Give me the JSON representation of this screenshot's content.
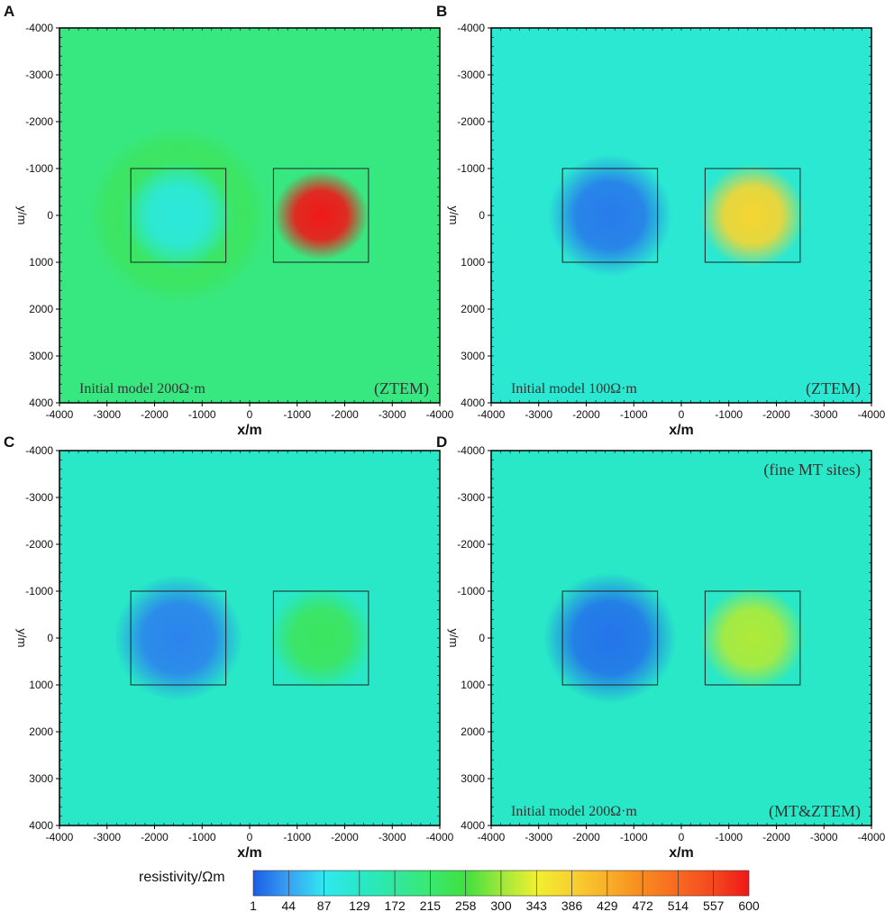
{
  "chart_data": [
    {
      "type": "heatmap",
      "panel_label": "A",
      "xlabel": "x/m",
      "ylabel": "y/m",
      "x_ticks": [
        "-4000",
        "-3000",
        "-2000",
        "-1000",
        "0",
        "-1000",
        "-2000",
        "-3000",
        "-4000"
      ],
      "y_ticks": [
        "-4000",
        "-3000",
        "-2000",
        "-1000",
        "0",
        "1000",
        "2000",
        "3000",
        "4000"
      ],
      "xlim": [
        -4000,
        4000
      ],
      "ylim": [
        -4000,
        4000
      ],
      "background_resistivity": 200,
      "annotation": "Initial model 200Ω·m",
      "method": "(ZTEM)",
      "boxes": [
        {
          "x": [
            -2500,
            -500
          ],
          "y": [
            -1000,
            1000
          ]
        },
        {
          "x": [
            500,
            2500
          ],
          "y": [
            -1000,
            1000
          ]
        }
      ],
      "anomalies": [
        {
          "x": -1500,
          "y": 0,
          "rx": 1100,
          "ry": 1100,
          "value": 110
        },
        {
          "x": 1500,
          "y": 0,
          "rx": 1000,
          "ry": 950,
          "value": 600
        },
        {
          "x": -1500,
          "y": 0,
          "rx": 1900,
          "ry": 1900,
          "value": 250
        }
      ]
    },
    {
      "type": "heatmap",
      "panel_label": "B",
      "xlabel": "x/m",
      "ylabel": "y/m",
      "x_ticks": [
        "-4000",
        "-3000",
        "-2000",
        "-1000",
        "0",
        "-1000",
        "-2000",
        "-3000",
        "-4000"
      ],
      "y_ticks": [
        "-4000",
        "-3000",
        "-2000",
        "-1000",
        "0",
        "1000",
        "2000",
        "3000",
        "4000"
      ],
      "xlim": [
        -4000,
        4000
      ],
      "ylim": [
        -4000,
        4000
      ],
      "background_resistivity": 120,
      "annotation": "Initial model 100Ω·m",
      "method": "(ZTEM)",
      "boxes": [
        {
          "x": [
            -2500,
            -500
          ],
          "y": [
            -1000,
            1000
          ]
        },
        {
          "x": [
            500,
            2500
          ],
          "y": [
            -1000,
            1000
          ]
        }
      ],
      "anomalies": [
        {
          "x": -1500,
          "y": 0,
          "rx": 1300,
          "ry": 1300,
          "value": 20
        },
        {
          "x": 1500,
          "y": 0,
          "rx": 1100,
          "ry": 1100,
          "value": 380
        }
      ]
    },
    {
      "type": "heatmap",
      "panel_label": "C",
      "xlabel": "x/m",
      "ylabel": "y/m",
      "x_ticks": [
        "-4000",
        "-3000",
        "-2000",
        "-1000",
        "0",
        "-1000",
        "-2000",
        "-3000",
        "-4000"
      ],
      "y_ticks": [
        "-4000",
        "-3000",
        "-2000",
        "-1000",
        "0",
        "1000",
        "2000",
        "3000",
        "4000"
      ],
      "xlim": [
        -4000,
        4000
      ],
      "ylim": [
        -4000,
        4000
      ],
      "background_resistivity": 130,
      "annotation": "",
      "method": "",
      "boxes": [
        {
          "x": [
            -2500,
            -500
          ],
          "y": [
            -1000,
            1000
          ]
        },
        {
          "x": [
            500,
            2500
          ],
          "y": [
            -1000,
            1000
          ]
        }
      ],
      "anomalies": [
        {
          "x": -1500,
          "y": 0,
          "rx": 1350,
          "ry": 1350,
          "value": 25
        },
        {
          "x": 1500,
          "y": 0,
          "rx": 1100,
          "ry": 1100,
          "value": 230
        }
      ]
    },
    {
      "type": "heatmap",
      "panel_label": "D",
      "xlabel": "x/m",
      "ylabel": "y/m",
      "x_ticks": [
        "-4000",
        "-3000",
        "-2000",
        "-1000",
        "0",
        "-1000",
        "-2000",
        "-3000",
        "-4000"
      ],
      "y_ticks": [
        "-4000",
        "-3000",
        "-2000",
        "-1000",
        "0",
        "1000",
        "2000",
        "3000",
        "4000"
      ],
      "xlim": [
        -4000,
        4000
      ],
      "ylim": [
        -4000,
        4000
      ],
      "background_resistivity": 130,
      "annotation": "Initial model 200Ω·m",
      "method": "(MT&ZTEM)",
      "note": "(fine MT sites)",
      "boxes": [
        {
          "x": [
            -2500,
            -500
          ],
          "y": [
            -1000,
            1000
          ]
        },
        {
          "x": [
            500,
            2500
          ],
          "y": [
            -1000,
            1000
          ]
        }
      ],
      "anomalies": [
        {
          "x": -1500,
          "y": 0,
          "rx": 1400,
          "ry": 1400,
          "value": 15
        },
        {
          "x": 1500,
          "y": 0,
          "rx": 1100,
          "ry": 1100,
          "value": 310
        }
      ]
    }
  ],
  "colorbar": {
    "title": "resistivity/Ωm",
    "ticks": [
      "1",
      "44",
      "87",
      "129",
      "172",
      "215",
      "258",
      "300",
      "343",
      "386",
      "429",
      "472",
      "514",
      "557",
      "600"
    ],
    "colors": [
      "#1a5ee6",
      "#3aa0f2",
      "#30e8f0",
      "#28e8c8",
      "#30e8a0",
      "#3ae870",
      "#40e040",
      "#9ce83a",
      "#f0f030",
      "#f8d030",
      "#f8b028",
      "#f88a20",
      "#f86820",
      "#f44820",
      "#f01818"
    ],
    "range": [
      1,
      600
    ]
  }
}
